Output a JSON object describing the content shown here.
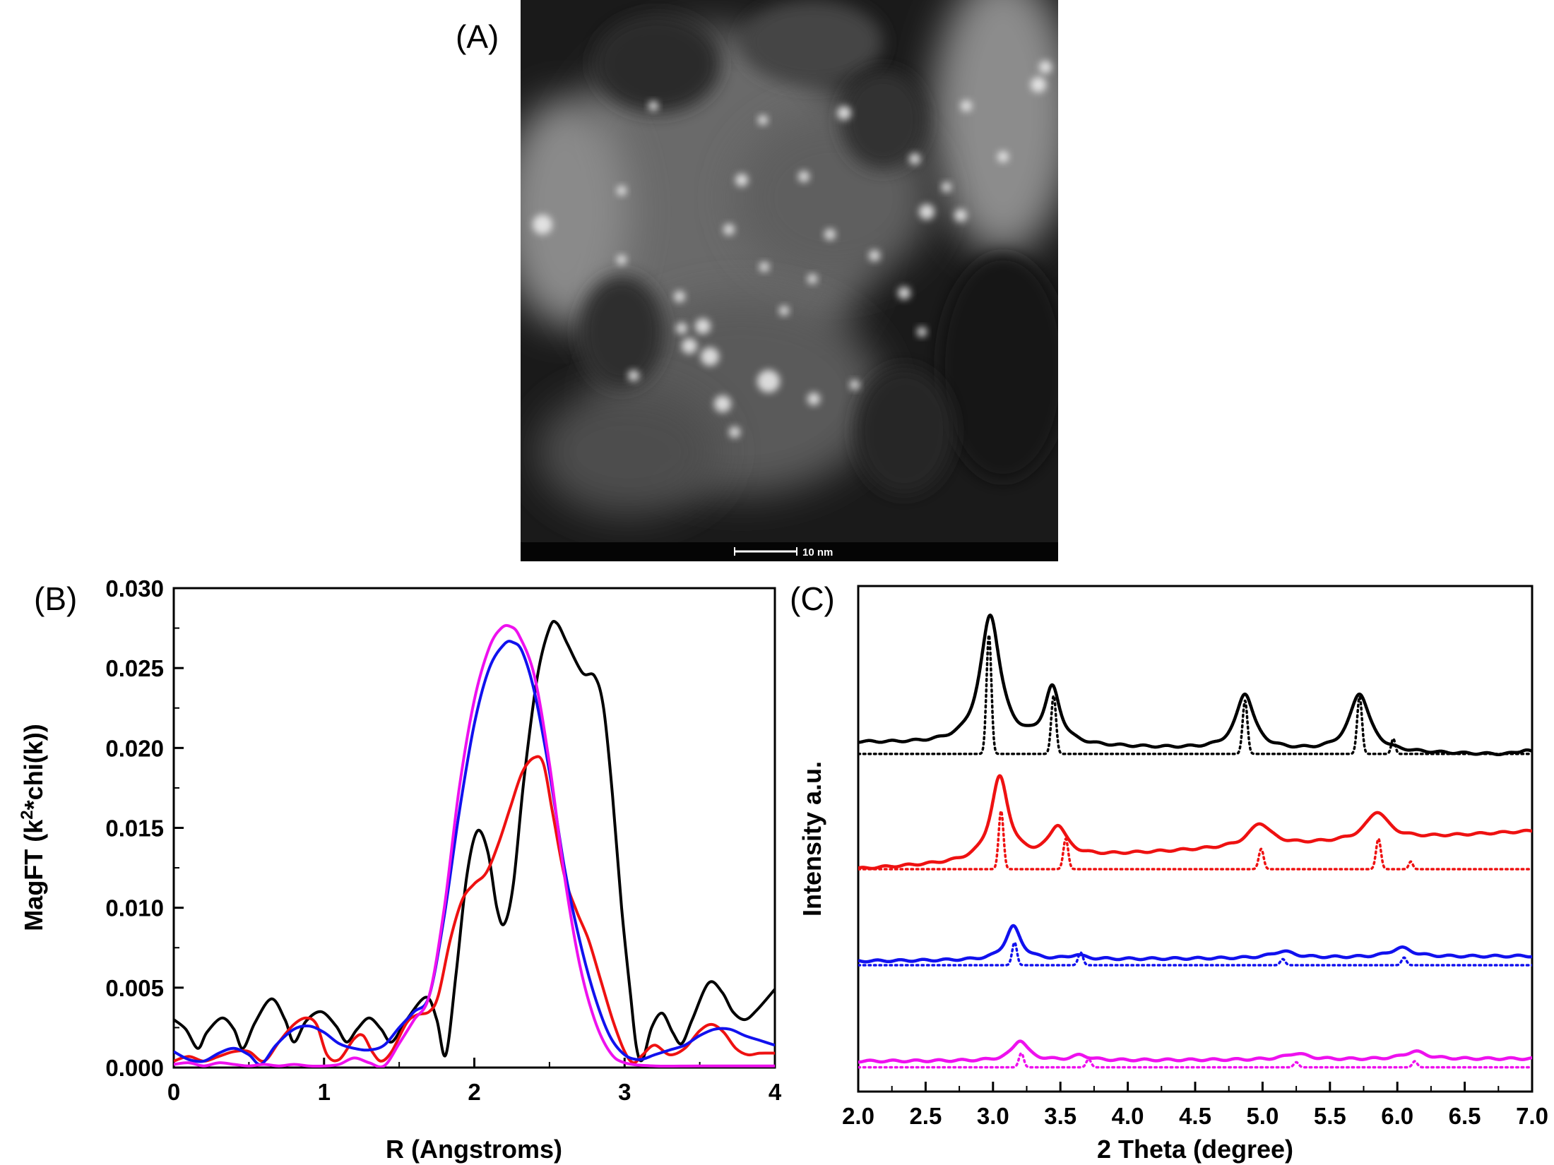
{
  "panels": {
    "a": "(A)",
    "b": "(B)",
    "c": "(C)"
  },
  "micrograph": {
    "scale_bar_label": "10 nm"
  },
  "colors": {
    "black": "#000000",
    "red": "#ee1111",
    "blue": "#1111ee",
    "magenta": "#ee11ee"
  },
  "chart_data": [
    {
      "type": "line",
      "panel": "B",
      "xlabel": "R (Angstroms)",
      "ylabel": "MagFT (k²*chi(k))",
      "ylabel_parts": [
        "MagFT (k",
        "2",
        "*chi(k))"
      ],
      "xlim": [
        0,
        4
      ],
      "ylim": [
        0,
        0.03
      ],
      "xticks": [
        0,
        1,
        2,
        3,
        4
      ],
      "xtick_labels": [
        "0",
        "1",
        "2",
        "3",
        "4"
      ],
      "yticks": [
        0,
        0.005,
        0.01,
        0.015,
        0.02,
        0.025,
        0.03
      ],
      "ytick_labels": [
        "0.000",
        "0.005",
        "0.010",
        "0.015",
        "0.020",
        "0.025",
        "0.030"
      ],
      "series": [
        {
          "name": "black",
          "color": "#000000",
          "points": [
            [
              0,
              0.003
            ],
            [
              0.08,
              0.0024
            ],
            [
              0.16,
              0.0012
            ],
            [
              0.22,
              0.0022
            ],
            [
              0.32,
              0.0031
            ],
            [
              0.4,
              0.0024
            ],
            [
              0.46,
              0.0012
            ],
            [
              0.54,
              0.0028
            ],
            [
              0.65,
              0.0043
            ],
            [
              0.74,
              0.003
            ],
            [
              0.8,
              0.0016
            ],
            [
              0.88,
              0.0029
            ],
            [
              0.98,
              0.0035
            ],
            [
              1.08,
              0.0026
            ],
            [
              1.15,
              0.0016
            ],
            [
              1.22,
              0.0024
            ],
            [
              1.3,
              0.0031
            ],
            [
              1.38,
              0.0024
            ],
            [
              1.45,
              0.0016
            ],
            [
              1.55,
              0.003
            ],
            [
              1.68,
              0.0044
            ],
            [
              1.75,
              0.003
            ],
            [
              1.81,
              0.0008
            ],
            [
              1.88,
              0.006
            ],
            [
              1.95,
              0.012
            ],
            [
              2.02,
              0.0148
            ],
            [
              2.09,
              0.0135
            ],
            [
              2.15,
              0.01
            ],
            [
              2.2,
              0.009
            ],
            [
              2.26,
              0.0115
            ],
            [
              2.33,
              0.018
            ],
            [
              2.42,
              0.0245
            ],
            [
              2.5,
              0.0275
            ],
            [
              2.55,
              0.0278
            ],
            [
              2.62,
              0.0265
            ],
            [
              2.72,
              0.0247
            ],
            [
              2.8,
              0.0245
            ],
            [
              2.86,
              0.0225
            ],
            [
              2.92,
              0.017
            ],
            [
              2.98,
              0.01
            ],
            [
              3.04,
              0.0045
            ],
            [
              3.08,
              0.0012
            ],
            [
              3.12,
              0.0005
            ],
            [
              3.18,
              0.0025
            ],
            [
              3.25,
              0.0034
            ],
            [
              3.32,
              0.0022
            ],
            [
              3.38,
              0.0015
            ],
            [
              3.45,
              0.003
            ],
            [
              3.56,
              0.0053
            ],
            [
              3.65,
              0.0047
            ],
            [
              3.72,
              0.0035
            ],
            [
              3.8,
              0.003
            ],
            [
              3.88,
              0.0036
            ],
            [
              4.0,
              0.0049
            ]
          ]
        },
        {
          "name": "red",
          "color": "#ee1111",
          "points": [
            [
              0,
              0.0004
            ],
            [
              0.1,
              0.0007
            ],
            [
              0.2,
              0.0004
            ],
            [
              0.3,
              0.0007
            ],
            [
              0.4,
              0.001
            ],
            [
              0.5,
              0.001
            ],
            [
              0.6,
              0.0004
            ],
            [
              0.7,
              0.0016
            ],
            [
              0.8,
              0.0027
            ],
            [
              0.88,
              0.0031
            ],
            [
              0.95,
              0.0027
            ],
            [
              1.02,
              0.0008
            ],
            [
              1.1,
              0.0005
            ],
            [
              1.2,
              0.0018
            ],
            [
              1.26,
              0.002
            ],
            [
              1.32,
              0.001
            ],
            [
              1.38,
              0.0004
            ],
            [
              1.45,
              0.001
            ],
            [
              1.55,
              0.0028
            ],
            [
              1.62,
              0.0033
            ],
            [
              1.7,
              0.0035
            ],
            [
              1.76,
              0.0045
            ],
            [
              1.84,
              0.008
            ],
            [
              1.92,
              0.0105
            ],
            [
              2.0,
              0.0115
            ],
            [
              2.08,
              0.0122
            ],
            [
              2.16,
              0.014
            ],
            [
              2.24,
              0.0163
            ],
            [
              2.32,
              0.0185
            ],
            [
              2.4,
              0.0194
            ],
            [
              2.46,
              0.019
            ],
            [
              2.52,
              0.016
            ],
            [
              2.6,
              0.012
            ],
            [
              2.68,
              0.0098
            ],
            [
              2.76,
              0.008
            ],
            [
              2.84,
              0.0055
            ],
            [
              2.92,
              0.003
            ],
            [
              3.0,
              0.001
            ],
            [
              3.06,
              0.0003
            ],
            [
              3.12,
              0.0008
            ],
            [
              3.2,
              0.0014
            ],
            [
              3.3,
              0.0008
            ],
            [
              3.4,
              0.0012
            ],
            [
              3.5,
              0.0023
            ],
            [
              3.58,
              0.0027
            ],
            [
              3.66,
              0.0022
            ],
            [
              3.74,
              0.0012
            ],
            [
              3.82,
              0.0008
            ],
            [
              3.9,
              0.0009
            ],
            [
              4.0,
              0.0009
            ]
          ]
        },
        {
          "name": "blue",
          "color": "#1111ee",
          "points": [
            [
              0,
              0.001
            ],
            [
              0.1,
              0.0005
            ],
            [
              0.2,
              0.0004
            ],
            [
              0.3,
              0.0009
            ],
            [
              0.4,
              0.0012
            ],
            [
              0.5,
              0.0008
            ],
            [
              0.58,
              0.0002
            ],
            [
              0.68,
              0.0014
            ],
            [
              0.8,
              0.0024
            ],
            [
              0.9,
              0.0026
            ],
            [
              1.0,
              0.0022
            ],
            [
              1.1,
              0.0015
            ],
            [
              1.2,
              0.0012
            ],
            [
              1.3,
              0.0011
            ],
            [
              1.4,
              0.0014
            ],
            [
              1.5,
              0.0025
            ],
            [
              1.6,
              0.0035
            ],
            [
              1.7,
              0.0045
            ],
            [
              1.8,
              0.0095
            ],
            [
              1.9,
              0.016
            ],
            [
              2.0,
              0.0215
            ],
            [
              2.1,
              0.025
            ],
            [
              2.2,
              0.0265
            ],
            [
              2.26,
              0.0266
            ],
            [
              2.32,
              0.026
            ],
            [
              2.4,
              0.0235
            ],
            [
              2.5,
              0.0185
            ],
            [
              2.6,
              0.0125
            ],
            [
              2.7,
              0.008
            ],
            [
              2.8,
              0.0045
            ],
            [
              2.9,
              0.002
            ],
            [
              3.0,
              0.0008
            ],
            [
              3.1,
              0.0005
            ],
            [
              3.2,
              0.0008
            ],
            [
              3.3,
              0.0011
            ],
            [
              3.4,
              0.0014
            ],
            [
              3.5,
              0.002
            ],
            [
              3.6,
              0.0024
            ],
            [
              3.7,
              0.0024
            ],
            [
              3.8,
              0.002
            ],
            [
              3.9,
              0.0017
            ],
            [
              4.0,
              0.0014
            ]
          ]
        },
        {
          "name": "magenta",
          "color": "#ee11ee",
          "points": [
            [
              0,
              0.0002
            ],
            [
              0.1,
              0.0003
            ],
            [
              0.2,
              0.0001
            ],
            [
              0.3,
              0.0003
            ],
            [
              0.4,
              0.0002
            ],
            [
              0.5,
              0.0001
            ],
            [
              0.6,
              0.0002
            ],
            [
              0.7,
              0.0001
            ],
            [
              0.8,
              0.0002
            ],
            [
              0.9,
              0.0001
            ],
            [
              1.0,
              0.0001
            ],
            [
              1.1,
              0.0002
            ],
            [
              1.2,
              0.0006
            ],
            [
              1.3,
              0.0003
            ],
            [
              1.4,
              0.0001
            ],
            [
              1.5,
              0.0015
            ],
            [
              1.6,
              0.003
            ],
            [
              1.7,
              0.0045
            ],
            [
              1.8,
              0.01
            ],
            [
              1.9,
              0.0175
            ],
            [
              2.0,
              0.023
            ],
            [
              2.1,
              0.0263
            ],
            [
              2.18,
              0.0275
            ],
            [
              2.24,
              0.0276
            ],
            [
              2.3,
              0.027
            ],
            [
              2.4,
              0.0245
            ],
            [
              2.5,
              0.019
            ],
            [
              2.6,
              0.012
            ],
            [
              2.7,
              0.0065
            ],
            [
              2.8,
              0.003
            ],
            [
              2.9,
              0.001
            ],
            [
              3.0,
              0.0003
            ],
            [
              3.2,
              0.0001
            ],
            [
              3.5,
              0.0001
            ],
            [
              4.0,
              0.0001
            ]
          ]
        }
      ]
    },
    {
      "type": "line",
      "panel": "C",
      "xlabel": "2 Theta (degree)",
      "ylabel": "Intensity a.u.",
      "xlim": [
        2.0,
        7.0
      ],
      "ylim": [
        0,
        1
      ],
      "xticks": [
        2.0,
        2.5,
        3.0,
        3.5,
        4.0,
        4.5,
        5.0,
        5.5,
        6.0,
        6.5,
        7.0
      ],
      "xtick_labels": [
        "2.0",
        "2.5",
        "3.0",
        "3.5",
        "4.0",
        "4.5",
        "5.0",
        "5.5",
        "6.0",
        "6.5",
        "7.0"
      ],
      "series": [
        {
          "name": "black",
          "color": "#000000",
          "style": "solid",
          "baseline": 0.69,
          "slope": -0.005,
          "peaks": [
            [
              2.98,
              0.255,
              0.09
            ],
            [
              3.44,
              0.11,
              0.07
            ],
            [
              4.87,
              0.11,
              0.08
            ],
            [
              5.72,
              0.115,
              0.09
            ],
            [
              6.95,
              0.01,
              0.06
            ]
          ]
        },
        {
          "name": "black",
          "color": "#000000",
          "style": "dotted",
          "baseline": 0.668,
          "slope": 0,
          "peaks": [
            [
              2.97,
              0.235,
              0.018
            ],
            [
              3.45,
              0.115,
              0.018
            ],
            [
              4.87,
              0.105,
              0.018
            ],
            [
              5.72,
              0.113,
              0.018
            ],
            [
              5.97,
              0.03,
              0.015
            ]
          ]
        },
        {
          "name": "red",
          "color": "#ee1111",
          "style": "solid",
          "baseline": 0.44,
          "slope": 0.015,
          "peaks": [
            [
              3.05,
              0.165,
              0.08
            ],
            [
              3.48,
              0.06,
              0.08
            ],
            [
              4.98,
              0.045,
              0.1
            ],
            [
              5.85,
              0.055,
              0.1
            ]
          ]
        },
        {
          "name": "red",
          "color": "#ee1111",
          "style": "dotted",
          "baseline": 0.44,
          "slope": 0,
          "peaks": [
            [
              3.06,
              0.115,
              0.018
            ],
            [
              3.54,
              0.06,
              0.018
            ],
            [
              4.99,
              0.04,
              0.018
            ],
            [
              5.86,
              0.06,
              0.018
            ],
            [
              6.1,
              0.015,
              0.015
            ]
          ]
        },
        {
          "name": "blue",
          "color": "#1111ee",
          "style": "solid",
          "baseline": 0.258,
          "slope": 0.002,
          "peaks": [
            [
              3.15,
              0.066,
              0.07
            ],
            [
              3.62,
              0.008,
              0.07
            ],
            [
              5.15,
              0.013,
              0.1
            ],
            [
              6.03,
              0.018,
              0.1
            ]
          ]
        },
        {
          "name": "blue",
          "color": "#1111ee",
          "style": "dotted",
          "baseline": 0.25,
          "slope": 0,
          "peaks": [
            [
              3.16,
              0.045,
              0.018
            ],
            [
              3.65,
              0.025,
              0.018
            ],
            [
              5.15,
              0.012,
              0.018
            ],
            [
              6.05,
              0.015,
              0.018
            ]
          ]
        },
        {
          "name": "magenta",
          "color": "#ee11ee",
          "style": "solid",
          "baseline": 0.06,
          "slope": 0.001,
          "peaks": [
            [
              3.2,
              0.04,
              0.07
            ],
            [
              3.65,
              0.01,
              0.07
            ],
            [
              5.25,
              0.012,
              0.1
            ],
            [
              6.13,
              0.015,
              0.1
            ]
          ]
        },
        {
          "name": "magenta",
          "color": "#ee11ee",
          "style": "dotted",
          "baseline": 0.048,
          "slope": 0,
          "peaks": [
            [
              3.21,
              0.028,
              0.018
            ],
            [
              3.71,
              0.016,
              0.018
            ],
            [
              5.25,
              0.01,
              0.018
            ],
            [
              6.13,
              0.012,
              0.018
            ]
          ]
        }
      ]
    }
  ]
}
